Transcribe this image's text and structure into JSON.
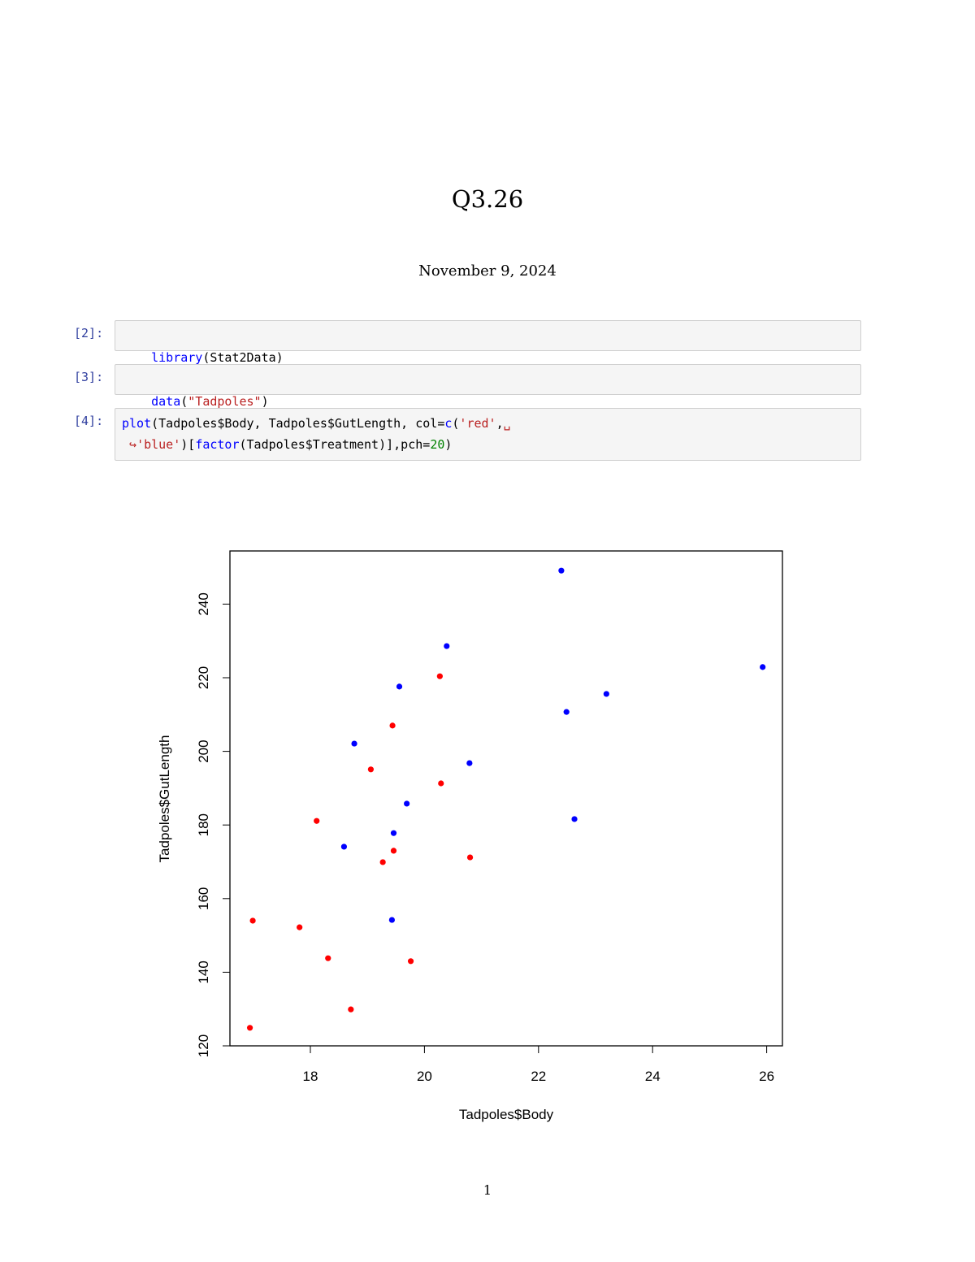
{
  "document": {
    "title": "Q3.26",
    "date": "November 9, 2024",
    "page_number": "1"
  },
  "cells": [
    {
      "prompt": "[2]:",
      "tokens": [
        {
          "text": "library",
          "cls": "kw"
        },
        {
          "text": "(Stat2Data)",
          "cls": "plain"
        }
      ]
    },
    {
      "prompt": "[3]:",
      "tokens": [
        {
          "text": "data",
          "cls": "kw"
        },
        {
          "text": "(",
          "cls": "plain"
        },
        {
          "text": "\"Tadpoles\"",
          "cls": "str"
        },
        {
          "text": ")",
          "cls": "plain"
        }
      ]
    },
    {
      "prompt": "[4]:",
      "line1": [
        {
          "text": "plot",
          "cls": "kw"
        },
        {
          "text": "(Tadpoles$Body, Tadpoles$GutLength, col=",
          "cls": "plain"
        },
        {
          "text": "c",
          "cls": "kw"
        },
        {
          "text": "(",
          "cls": "plain"
        },
        {
          "text": "'red'",
          "cls": "str"
        },
        {
          "text": ",",
          "cls": "plain"
        },
        {
          "text": "␣",
          "cls": "sp"
        }
      ],
      "line2": [
        {
          "text": " ↪",
          "cls": "sp"
        },
        {
          "text": "'blue'",
          "cls": "str"
        },
        {
          "text": ")[",
          "cls": "plain"
        },
        {
          "text": "factor",
          "cls": "kw"
        },
        {
          "text": "(Tadpoles$Treatment)],pch=",
          "cls": "plain"
        },
        {
          "text": "20",
          "cls": "num"
        },
        {
          "text": ")",
          "cls": "plain"
        }
      ]
    }
  ],
  "chart_data": {
    "type": "scatter",
    "title": "",
    "xlabel": "Tadpoles$Body",
    "ylabel": "Tadpoles$GutLength",
    "xlim": [
      16.6,
      26.3
    ],
    "ylim": [
      120,
      254
    ],
    "xticks": [
      18,
      20,
      22,
      24,
      26
    ],
    "yticks": [
      120,
      140,
      160,
      180,
      200,
      220,
      240
    ],
    "grid": false,
    "legend": null,
    "colors": {
      "red": "#ff0000",
      "blue": "#0000ff"
    },
    "series": [
      {
        "name": "red",
        "color": "#ff0000",
        "points": [
          [
            20.27,
            220.4
          ],
          [
            19.44,
            207.0
          ],
          [
            19.06,
            195.1
          ],
          [
            20.29,
            191.3
          ],
          [
            18.11,
            181.1
          ],
          [
            19.46,
            173.0
          ],
          [
            19.27,
            169.9
          ],
          [
            20.8,
            171.2
          ],
          [
            16.99,
            154.0
          ],
          [
            17.81,
            152.2
          ],
          [
            18.31,
            143.8
          ],
          [
            19.76,
            143.0
          ],
          [
            18.71,
            129.9
          ],
          [
            16.94,
            124.9
          ]
        ]
      },
      {
        "name": "blue",
        "color": "#0000ff",
        "points": [
          [
            22.4,
            249.1
          ],
          [
            20.39,
            228.6
          ],
          [
            19.56,
            217.6
          ],
          [
            18.77,
            202.1
          ],
          [
            20.79,
            196.8
          ],
          [
            19.69,
            185.8
          ],
          [
            18.59,
            174.1
          ],
          [
            19.46,
            177.8
          ],
          [
            19.43,
            154.2
          ],
          [
            22.49,
            210.7
          ],
          [
            23.19,
            215.6
          ],
          [
            22.63,
            181.6
          ],
          [
            25.93,
            222.9
          ]
        ]
      }
    ]
  }
}
